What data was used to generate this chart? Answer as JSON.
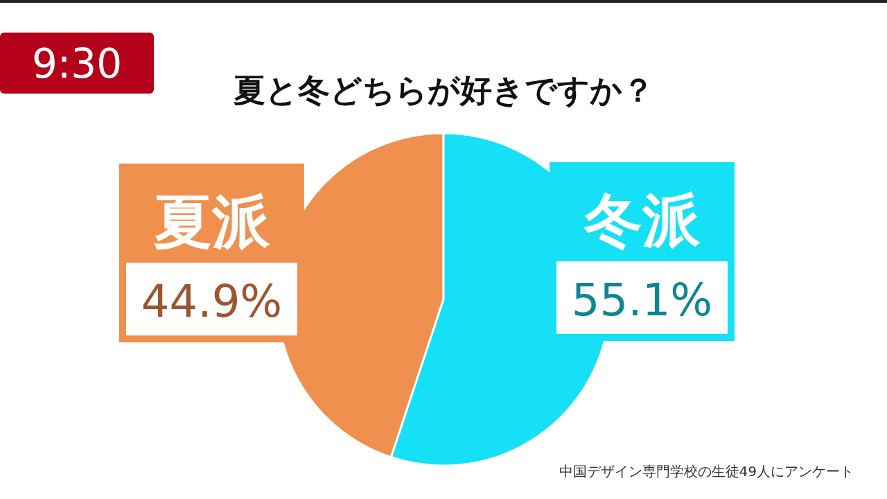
{
  "chart_data": {
    "type": "pie",
    "title": "夏と冬どちらが好きですか？",
    "categories": [
      "夏派",
      "冬派"
    ],
    "values": [
      44.9,
      55.1
    ],
    "colors": [
      "#f0904f",
      "#16e0f5"
    ],
    "value_labels": [
      "44.9%",
      "55.1%"
    ],
    "annotations": [
      "9:30",
      "中国デザイン専門学校の生徒49人にアンケート"
    ]
  }
}
